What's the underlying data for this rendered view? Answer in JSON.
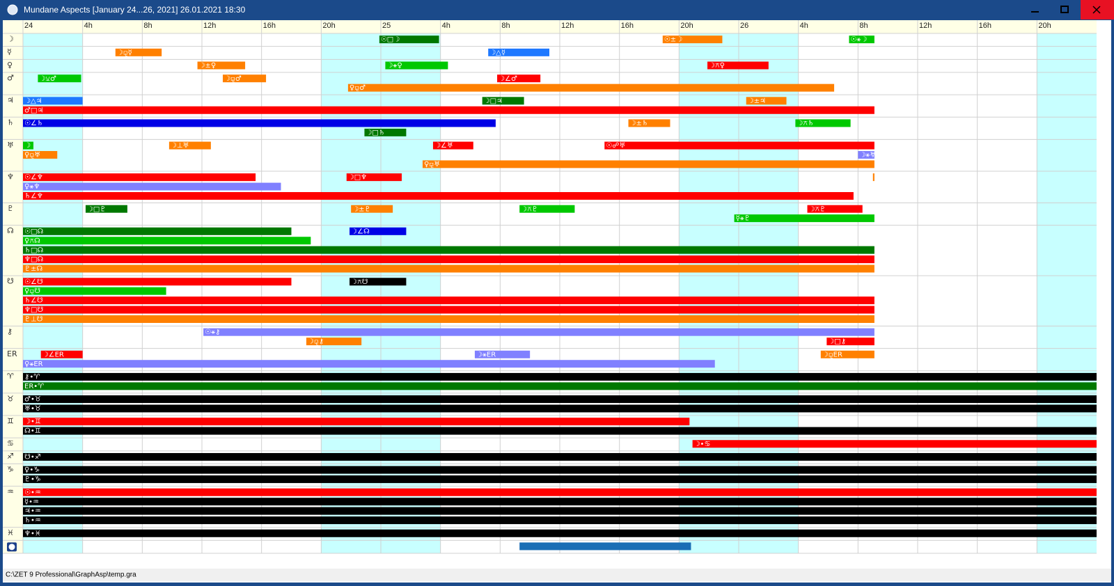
{
  "window": {
    "title": "Mundane Aspects [January 24...26, 2021]  26.01.2021 18:30",
    "status": "C:\\ZET 9 Professional\\GraphAsp\\temp.gra"
  },
  "chart_data": {
    "type": "timeline",
    "xlim": [
      0,
      72
    ],
    "xticks": [
      {
        "value": 0,
        "label": "24"
      },
      {
        "value": 4,
        "label": "4h"
      },
      {
        "value": 8,
        "label": "8h"
      },
      {
        "value": 12,
        "label": "12h"
      },
      {
        "value": 16,
        "label": "16h"
      },
      {
        "value": 20,
        "label": "20h"
      },
      {
        "value": 24,
        "label": "25"
      },
      {
        "value": 28,
        "label": "4h"
      },
      {
        "value": 32,
        "label": "8h"
      },
      {
        "value": 36,
        "label": "12h"
      },
      {
        "value": 40,
        "label": "16h"
      },
      {
        "value": 44,
        "label": "20h"
      },
      {
        "value": 48,
        "label": "26"
      },
      {
        "value": 52,
        "label": "4h"
      },
      {
        "value": 56,
        "label": "8h"
      },
      {
        "value": 60,
        "label": "12h"
      },
      {
        "value": 64,
        "label": "16h"
      },
      {
        "value": 68,
        "label": "20h"
      }
    ],
    "shaded": [
      [
        0,
        4
      ],
      [
        20,
        28
      ],
      [
        44,
        52
      ],
      [
        68,
        72
      ]
    ],
    "shade_color": "#c8ffff",
    "grid": true,
    "rows": [
      {
        "label": "☽",
        "lines": [
          [
            {
              "label": "☉□☽",
              "color": "#007800",
              "start": 23.9,
              "end": 27.9
            },
            {
              "label": "☉±☽",
              "color": "#ff8000",
              "start": 42.9,
              "end": 46.9
            },
            {
              "label": "☉⚹☽",
              "color": "#00c800",
              "start": 55.4,
              "end": 57.1
            }
          ]
        ]
      },
      {
        "label": "☿",
        "lines": [
          [
            {
              "label": "☽⚼☿",
              "color": "#ff8000",
              "start": 6.2,
              "end": 9.3
            },
            {
              "label": "☽△☿",
              "color": "#1e78ff",
              "start": 31.2,
              "end": 35.3
            }
          ]
        ]
      },
      {
        "label": "♀",
        "lines": [
          [
            {
              "label": "☽±♀",
              "color": "#ff8000",
              "start": 11.7,
              "end": 14.9
            },
            {
              "label": "☽⚹♀",
              "color": "#00c800",
              "start": 24.3,
              "end": 28.5
            },
            {
              "label": "☽⚻♀",
              "color": "#ff0000",
              "start": 45.9,
              "end": 50.0
            }
          ]
        ]
      },
      {
        "label": "♂",
        "lines": [
          [
            {
              "label": "☽⚺♂",
              "color": "#00c800",
              "start": 1.0,
              "end": 3.9
            },
            {
              "label": "☽⚼♂",
              "color": "#ff8000",
              "start": 13.4,
              "end": 16.3
            },
            {
              "label": "☽∠♂",
              "color": "#ff0000",
              "start": 31.8,
              "end": 34.7
            }
          ],
          [
            {
              "label": "♀⚼♂",
              "color": "#ff8000",
              "start": 21.8,
              "end": 54.4
            }
          ]
        ]
      },
      {
        "label": "♃",
        "lines": [
          [
            {
              "label": "☽△♃",
              "color": "#1e78ff",
              "start": 0,
              "end": 4
            },
            {
              "label": "☽□♃",
              "color": "#007800",
              "start": 30.8,
              "end": 33.6
            },
            {
              "label": "☽±♃",
              "color": "#ff8000",
              "start": 48.5,
              "end": 51.2
            }
          ],
          [
            {
              "label": "♂□♃",
              "color": "#ff0000",
              "start": 0,
              "end": 57.1
            }
          ]
        ]
      },
      {
        "label": "♄",
        "lines": [
          [
            {
              "label": "☉∠♄",
              "color": "#0000e6",
              "start": 0,
              "end": 31.7
            },
            {
              "label": "☽±♄",
              "color": "#ff8000",
              "start": 40.6,
              "end": 43.4
            },
            {
              "label": "☽⚻♄",
              "color": "#00c800",
              "start": 51.8,
              "end": 55.5
            }
          ],
          [
            {
              "label": "☽□♄",
              "color": "#007800",
              "start": 22.9,
              "end": 25.7
            }
          ]
        ]
      },
      {
        "label": "♅",
        "lines": [
          [
            {
              "label": "☽",
              "color": "#00c800",
              "start": 0,
              "end": 0.7
            },
            {
              "label": "☽⊥♅",
              "color": "#ff8000",
              "start": 9.8,
              "end": 12.6
            },
            {
              "label": "☽∠♅",
              "color": "#ff0000",
              "start": 27.5,
              "end": 30.2
            },
            {
              "label": "☉☍♅",
              "color": "#ff0000",
              "start": 39.0,
              "end": 57.1
            }
          ],
          [
            {
              "label": "♀⚼♅",
              "color": "#ff8000",
              "start": 0,
              "end": 2.3
            },
            {
              "label": "☽⚹♅",
              "color": "#8080ff",
              "start": 56.0,
              "end": 57.1
            }
          ],
          [
            {
              "label": "♀⚼♅",
              "color": "#ff8000",
              "start": 26.8,
              "end": 57.1
            }
          ]
        ]
      },
      {
        "label": "♆",
        "lines": [
          [
            {
              "label": "☉∠♆",
              "color": "#ff0000",
              "start": 0,
              "end": 15.6
            },
            {
              "label": "☽□♆",
              "color": "#ff0000",
              "start": 21.7,
              "end": 25.4
            },
            {
              "label": null,
              "color": "#ff8000",
              "start": 57.0,
              "end": 57.1
            }
          ],
          [
            {
              "label": "♀⚹♆",
              "color": "#8080ff",
              "start": 0,
              "end": 17.3
            }
          ],
          [
            {
              "label": "♄∠♆",
              "color": "#ff0000",
              "start": 0,
              "end": 55.7
            }
          ]
        ]
      },
      {
        "label": "♇",
        "lines": [
          [
            {
              "label": "☽□♇",
              "color": "#007800",
              "start": 4.2,
              "end": 7.0
            },
            {
              "label": "☽±♇",
              "color": "#ff8000",
              "start": 22.0,
              "end": 24.8
            },
            {
              "label": "☽⚻♇",
              "color": "#00c800",
              "start": 33.3,
              "end": 37.0
            },
            {
              "label": "☽⚻♇",
              "color": "#ff0000",
              "start": 52.6,
              "end": 56.3
            }
          ],
          [
            {
              "label": "☿⚹♇",
              "color": "#00c800",
              "start": 47.7,
              "end": 57.1
            }
          ]
        ]
      },
      {
        "label": "☊",
        "lines": [
          [
            {
              "label": "☉□☊",
              "color": "#007800",
              "start": 0,
              "end": 18.0
            },
            {
              "label": "☽∠☊",
              "color": "#0000e6",
              "start": 21.9,
              "end": 25.7
            }
          ],
          [
            {
              "label": "♀⚻☊",
              "color": "#00c800",
              "start": 0,
              "end": 19.3
            }
          ],
          [
            {
              "label": "♄□☊",
              "color": "#007800",
              "start": 0,
              "end": 57.1
            }
          ],
          [
            {
              "label": "♆□☊",
              "color": "#ff0000",
              "start": 0,
              "end": 57.1
            }
          ],
          [
            {
              "label": "♇±☊",
              "color": "#ff8000",
              "start": 0,
              "end": 57.1
            }
          ]
        ]
      },
      {
        "label": "☋",
        "lines": [
          [
            {
              "label": "☉∠☋",
              "color": "#ff0000",
              "start": 0,
              "end": 18.0
            },
            {
              "label": "☽⚻☋",
              "color": "#000000",
              "start": 21.9,
              "end": 25.7
            }
          ],
          [
            {
              "label": "♀⚼☋",
              "color": "#00c800",
              "start": 0,
              "end": 9.6
            }
          ],
          [
            {
              "label": "♄∠☋",
              "color": "#ff0000",
              "start": 0,
              "end": 57.1
            }
          ],
          [
            {
              "label": "♆□☋",
              "color": "#ff0000",
              "start": 0,
              "end": 57.1
            }
          ],
          [
            {
              "label": "♇⊥☋",
              "color": "#ff8000",
              "start": 0,
              "end": 57.1
            }
          ]
        ]
      },
      {
        "label": "⚷",
        "lines": [
          [
            {
              "label": "☉⚹⚷",
              "color": "#8080ff",
              "start": 12.1,
              "end": 57.1
            }
          ],
          [
            {
              "label": "☽⚼⚷",
              "color": "#ff8000",
              "start": 19.0,
              "end": 22.7
            },
            {
              "label": "☽□⚷",
              "color": "#ff0000",
              "start": 53.9,
              "end": 57.1
            }
          ]
        ]
      },
      {
        "label": "ER",
        "lines": [
          [
            {
              "label": "☽∠ER",
              "color": "#ff0000",
              "start": 1.2,
              "end": 4.0
            },
            {
              "label": "☽⚹ER",
              "color": "#8080ff",
              "start": 30.3,
              "end": 34.0
            },
            {
              "label": "☽⚼ER",
              "color": "#ff8000",
              "start": 53.5,
              "end": 57.1
            }
          ],
          [
            {
              "label": "♀⚹ER",
              "color": "#8080ff",
              "start": 0,
              "end": 46.4
            }
          ]
        ]
      },
      {
        "label": "♈",
        "lines": [
          [
            {
              "label": "⚷•♈",
              "color": "#000000",
              "start": 0,
              "end": 72
            }
          ],
          [
            {
              "label": "ER•♈",
              "color": "#007800",
              "start": 0,
              "end": 72
            }
          ]
        ]
      },
      {
        "label": "♉",
        "lines": [
          [
            {
              "label": "♂•♉",
              "color": "#000000",
              "start": 0,
              "end": 72
            }
          ],
          [
            {
              "label": "♅•♉",
              "color": "#000000",
              "start": 0,
              "end": 72
            }
          ]
        ]
      },
      {
        "label": "♊",
        "lines": [
          [
            {
              "label": "☽•♊",
              "color": "#ff0000",
              "start": 0,
              "end": 44.7
            }
          ],
          [
            {
              "label": "☊•♊",
              "color": "#000000",
              "start": 0,
              "end": 72
            }
          ]
        ]
      },
      {
        "label": "♋",
        "lines": [
          [
            {
              "label": "☽•♋",
              "color": "#ff0000",
              "start": 44.9,
              "end": 72
            }
          ]
        ]
      },
      {
        "label": "♐",
        "lines": [
          [
            {
              "label": "☋•♐",
              "color": "#000000",
              "start": 0,
              "end": 72
            }
          ]
        ]
      },
      {
        "label": "♑",
        "lines": [
          [
            {
              "label": "♀•♑",
              "color": "#000000",
              "start": 0,
              "end": 72
            }
          ],
          [
            {
              "label": "♇•♑",
              "color": "#000000",
              "start": 0,
              "end": 72
            }
          ]
        ]
      },
      {
        "label": "♒",
        "lines": [
          [
            {
              "label": "☉•♒",
              "color": "#ff0000",
              "start": 0,
              "end": 72
            }
          ],
          [
            {
              "label": "☿•♒",
              "color": "#000000",
              "start": 0,
              "end": 72
            }
          ],
          [
            {
              "label": "♃•♒",
              "color": "#000000",
              "start": 0,
              "end": 72
            }
          ],
          [
            {
              "label": "♄•♒",
              "color": "#000000",
              "start": 0,
              "end": 72
            }
          ]
        ]
      },
      {
        "label": "♓",
        "lines": [
          [
            {
              "label": "♆•♓",
              "color": "#000000",
              "start": 0,
              "end": 72
            }
          ]
        ]
      },
      {
        "label": null,
        "lines": [
          [
            {
              "label": null,
              "color": "#1a6eb5",
              "start": 33.3,
              "end": 44.8
            }
          ]
        ]
      }
    ]
  }
}
